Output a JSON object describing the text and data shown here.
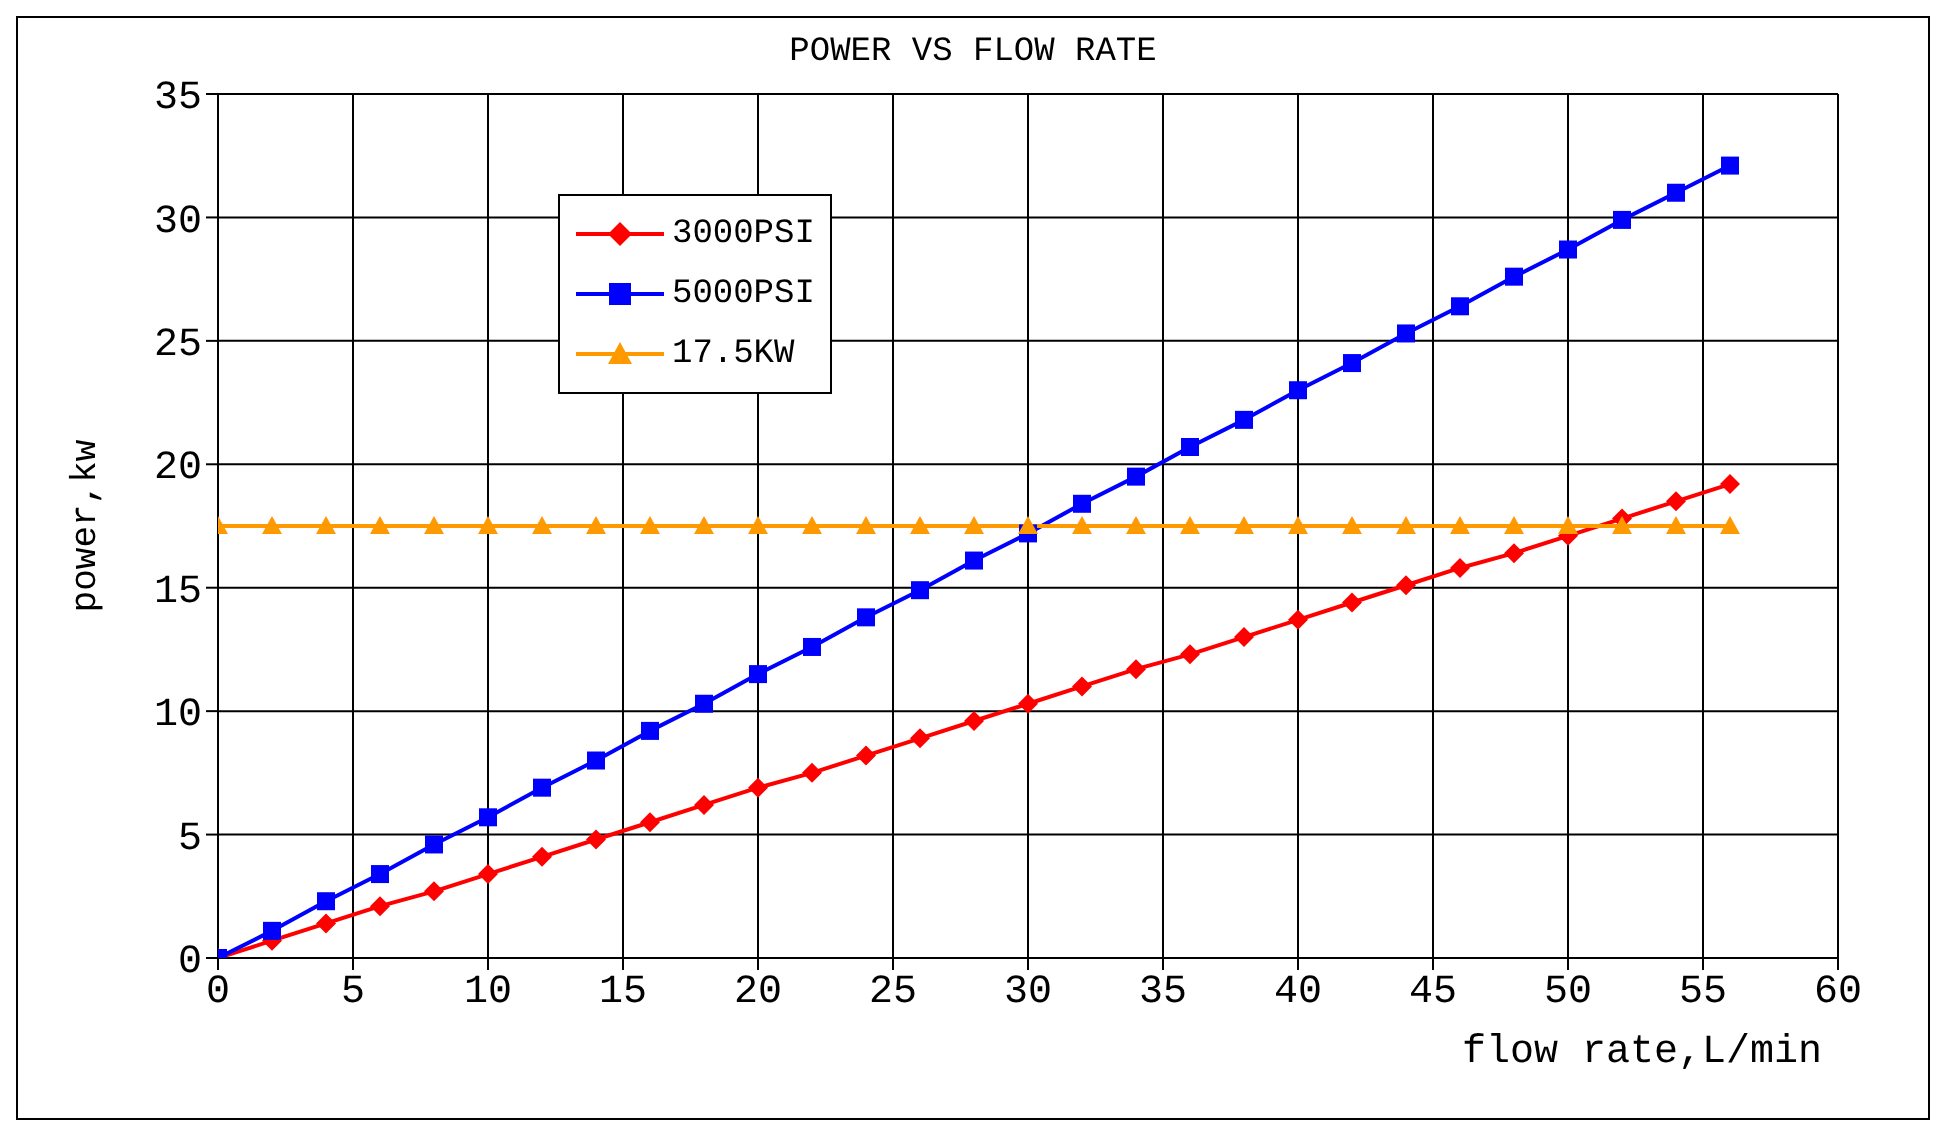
{
  "chart_data": {
    "type": "line",
    "title": "POWER VS FLOW RATE",
    "xlabel": "flow rate,L/min",
    "ylabel": "power,kw",
    "x": [
      0,
      2,
      4,
      6,
      8,
      10,
      12,
      14,
      16,
      18,
      20,
      22,
      24,
      26,
      28,
      30,
      32,
      34,
      36,
      38,
      40,
      42,
      44,
      46,
      48,
      50,
      52,
      54,
      56
    ],
    "series": [
      {
        "name": "3000PSI",
        "color": "#ff0000",
        "marker": "diamond",
        "values": [
          0,
          0.7,
          1.4,
          2.1,
          2.7,
          3.4,
          4.1,
          4.8,
          5.5,
          6.2,
          6.9,
          7.5,
          8.2,
          8.9,
          9.6,
          10.3,
          11.0,
          11.7,
          12.3,
          13.0,
          13.7,
          14.4,
          15.1,
          15.8,
          16.4,
          17.1,
          17.8,
          18.5,
          19.2
        ]
      },
      {
        "name": "5000PSI",
        "color": "#0000ff",
        "marker": "square",
        "values": [
          0,
          1.1,
          2.3,
          3.4,
          4.6,
          5.7,
          6.9,
          8.0,
          9.2,
          10.3,
          11.5,
          12.6,
          13.8,
          14.9,
          16.1,
          17.2,
          18.4,
          19.5,
          20.7,
          21.8,
          23.0,
          24.1,
          25.3,
          26.4,
          27.6,
          28.7,
          29.9,
          31.0,
          32.1
        ]
      },
      {
        "name": "17.5KW",
        "color": "#ff9900",
        "marker": "triangle",
        "values": [
          17.5,
          17.5,
          17.5,
          17.5,
          17.5,
          17.5,
          17.5,
          17.5,
          17.5,
          17.5,
          17.5,
          17.5,
          17.5,
          17.5,
          17.5,
          17.5,
          17.5,
          17.5,
          17.5,
          17.5,
          17.5,
          17.5,
          17.5,
          17.5,
          17.5,
          17.5,
          17.5,
          17.5,
          17.5
        ]
      }
    ],
    "xlim": [
      0,
      60
    ],
    "xticks": [
      0,
      5,
      10,
      15,
      20,
      25,
      30,
      35,
      40,
      45,
      50,
      55,
      60
    ],
    "ylim": [
      0,
      35
    ],
    "yticks": [
      0,
      5,
      10,
      15,
      20,
      25,
      30,
      35
    ],
    "grid": true,
    "legend": "top left",
    "line_style": "solid"
  }
}
